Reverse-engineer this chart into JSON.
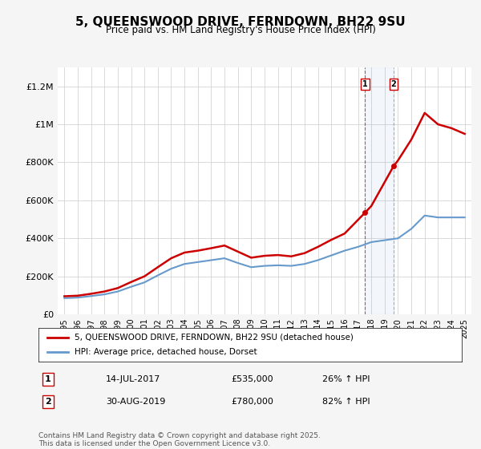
{
  "title": "5, QUEENSWOOD DRIVE, FERNDOWN, BH22 9SU",
  "subtitle": "Price paid vs. HM Land Registry's House Price Index (HPI)",
  "legend_line1": "5, QUEENSWOOD DRIVE, FERNDOWN, BH22 9SU (detached house)",
  "legend_line2": "HPI: Average price, detached house, Dorset",
  "sale1_label": "1",
  "sale1_date": "14-JUL-2017",
  "sale1_price": "£535,000",
  "sale1_hpi": "26% ↑ HPI",
  "sale1_year": 2017.53,
  "sale2_label": "2",
  "sale2_date": "30-AUG-2019",
  "sale2_price": "£780,000",
  "sale2_hpi": "82% ↑ HPI",
  "sale2_year": 2019.67,
  "footer": "Contains HM Land Registry data © Crown copyright and database right 2025.\nThis data is licensed under the Open Government Licence v3.0.",
  "line_color_red": "#cc0000",
  "line_color_blue": "#6699cc",
  "marker_box_color": "#cc0000",
  "background_color": "#f5f5f5",
  "plot_bg_color": "#ffffff",
  "ylim": [
    0,
    1300000
  ],
  "xlim": [
    1994.5,
    2025.5
  ],
  "yticks": [
    0,
    200000,
    400000,
    600000,
    800000,
    1000000,
    1200000
  ],
  "ytick_labels": [
    "£0",
    "£200K",
    "£400K",
    "£600K",
    "£800K",
    "£1M",
    "£1.2M"
  ],
  "xticks": [
    1995,
    1996,
    1997,
    1998,
    1999,
    2000,
    2001,
    2002,
    2003,
    2004,
    2005,
    2006,
    2007,
    2008,
    2009,
    2010,
    2011,
    2012,
    2013,
    2014,
    2015,
    2016,
    2017,
    2018,
    2019,
    2020,
    2021,
    2022,
    2023,
    2024,
    2025
  ],
  "hpi_years": [
    1995,
    1996,
    1997,
    1998,
    1999,
    2000,
    2001,
    2002,
    2003,
    2004,
    2005,
    2006,
    2007,
    2008,
    2009,
    2010,
    2011,
    2012,
    2013,
    2014,
    2015,
    2016,
    2017,
    2018,
    2019,
    2020,
    2021,
    2022,
    2023,
    2024,
    2025
  ],
  "hpi_values": [
    85000,
    88000,
    96000,
    105000,
    120000,
    145000,
    168000,
    205000,
    240000,
    265000,
    275000,
    285000,
    295000,
    270000,
    248000,
    255000,
    258000,
    255000,
    265000,
    285000,
    310000,
    335000,
    355000,
    380000,
    390000,
    400000,
    450000,
    520000,
    510000,
    510000,
    510000
  ],
  "prop_segments": [
    {
      "years": [
        1995,
        1996,
        1997,
        1998,
        1999,
        2000,
        2001,
        2002,
        2003,
        2004,
        2005,
        2006,
        2007,
        2008,
        2009,
        2010,
        2011,
        2012,
        2013,
        2014,
        2015,
        2016,
        2017.53
      ],
      "values": [
        95000,
        98000,
        108000,
        120000,
        138000,
        170000,
        200000,
        248000,
        295000,
        325000,
        335000,
        348000,
        362000,
        330000,
        298000,
        308000,
        312000,
        305000,
        322000,
        355000,
        392000,
        425000,
        535000
      ]
    },
    {
      "years": [
        2017.53,
        2018,
        2019.67
      ],
      "values": [
        535000,
        570000,
        780000
      ]
    },
    {
      "years": [
        2019.67,
        2020,
        2021,
        2022,
        2023,
        2024,
        2025
      ],
      "values": [
        780000,
        810000,
        920000,
        1060000,
        1000000,
        980000,
        950000
      ]
    }
  ]
}
